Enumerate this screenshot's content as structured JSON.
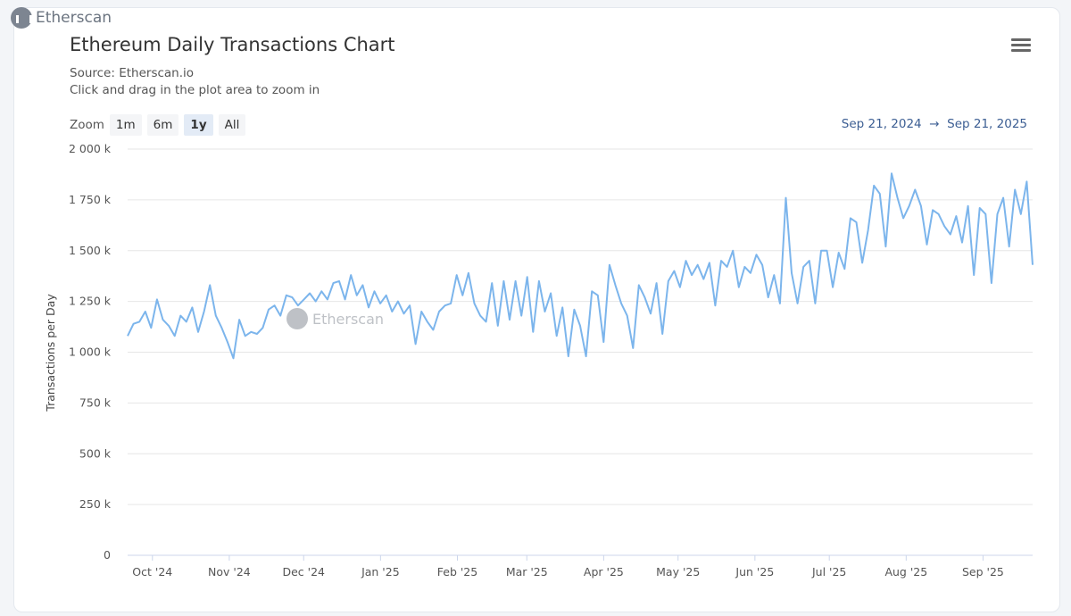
{
  "brand": "Etherscan",
  "header": {
    "title": "Ethereum Daily Transactions Chart",
    "source": "Source: Etherscan.io",
    "hint": "Click and drag in the plot area to zoom in"
  },
  "zoom": {
    "label": "Zoom",
    "buttons": [
      "1m",
      "6m",
      "1y",
      "All"
    ],
    "active": "1y"
  },
  "range": {
    "from": "Sep 21, 2024",
    "arrow": "→",
    "to": "Sep 21, 2025"
  },
  "colors": {
    "line": "#7cb5ec",
    "range_text": "#3c5e93"
  },
  "chart_data": {
    "type": "line",
    "title": "Ethereum Daily Transactions Chart",
    "ylabel": "Transactions per Day",
    "xlabel": "",
    "x_start": "2024-09-21",
    "x_end": "2025-09-21",
    "ylim": [
      0,
      2000000
    ],
    "yticks": [
      {
        "v": 0,
        "label": "0"
      },
      {
        "v": 250000,
        "label": "250 k"
      },
      {
        "v": 500000,
        "label": "500 k"
      },
      {
        "v": 750000,
        "label": "750 k"
      },
      {
        "v": 1000000,
        "label": "1 000 k"
      },
      {
        "v": 1250000,
        "label": "1 250 k"
      },
      {
        "v": 1500000,
        "label": "1 500 k"
      },
      {
        "v": 1750000,
        "label": "1 750 k"
      },
      {
        "v": 2000000,
        "label": "2 000 k"
      }
    ],
    "xticks": [
      {
        "d": 10,
        "label": "Oct '24"
      },
      {
        "d": 41,
        "label": "Nov '24"
      },
      {
        "d": 71,
        "label": "Dec '24"
      },
      {
        "d": 102,
        "label": "Jan '25"
      },
      {
        "d": 133,
        "label": "Feb '25"
      },
      {
        "d": 161,
        "label": "Mar '25"
      },
      {
        "d": 192,
        "label": "Apr '25"
      },
      {
        "d": 222,
        "label": "May '25"
      },
      {
        "d": 253,
        "label": "Jun '25"
      },
      {
        "d": 283,
        "label": "Jul '25"
      },
      {
        "d": 314,
        "label": "Aug '25"
      },
      {
        "d": 345,
        "label": "Sep '25"
      }
    ],
    "grid": true,
    "legend": "none",
    "values_k": [
      1080,
      1140,
      1150,
      1200,
      1120,
      1260,
      1160,
      1130,
      1080,
      1180,
      1150,
      1220,
      1100,
      1200,
      1330,
      1180,
      1120,
      1050,
      970,
      1160,
      1080,
      1100,
      1090,
      1120,
      1210,
      1230,
      1180,
      1280,
      1270,
      1230,
      1260,
      1290,
      1250,
      1300,
      1260,
      1340,
      1350,
      1260,
      1380,
      1280,
      1330,
      1220,
      1300,
      1240,
      1280,
      1200,
      1250,
      1190,
      1230,
      1040,
      1200,
      1150,
      1110,
      1200,
      1230,
      1240,
      1380,
      1280,
      1390,
      1240,
      1180,
      1150,
      1340,
      1130,
      1350,
      1160,
      1350,
      1180,
      1370,
      1100,
      1350,
      1200,
      1290,
      1080,
      1220,
      980,
      1210,
      1130,
      980,
      1300,
      1280,
      1050,
      1430,
      1330,
      1240,
      1180,
      1020,
      1330,
      1270,
      1190,
      1340,
      1090,
      1350,
      1400,
      1320,
      1450,
      1380,
      1430,
      1360,
      1440,
      1230,
      1450,
      1420,
      1500,
      1320,
      1420,
      1390,
      1480,
      1430,
      1270,
      1380,
      1240,
      1760,
      1390,
      1240,
      1420,
      1450,
      1240,
      1500,
      1500,
      1320,
      1490,
      1410,
      1660,
      1640,
      1440,
      1600,
      1820,
      1780,
      1520,
      1880,
      1760,
      1660,
      1720,
      1800,
      1720,
      1530,
      1700,
      1680,
      1620,
      1580,
      1670,
      1540,
      1720,
      1380,
      1710,
      1680,
      1340,
      1680,
      1760,
      1520,
      1800,
      1680,
      1840,
      1430
    ]
  }
}
